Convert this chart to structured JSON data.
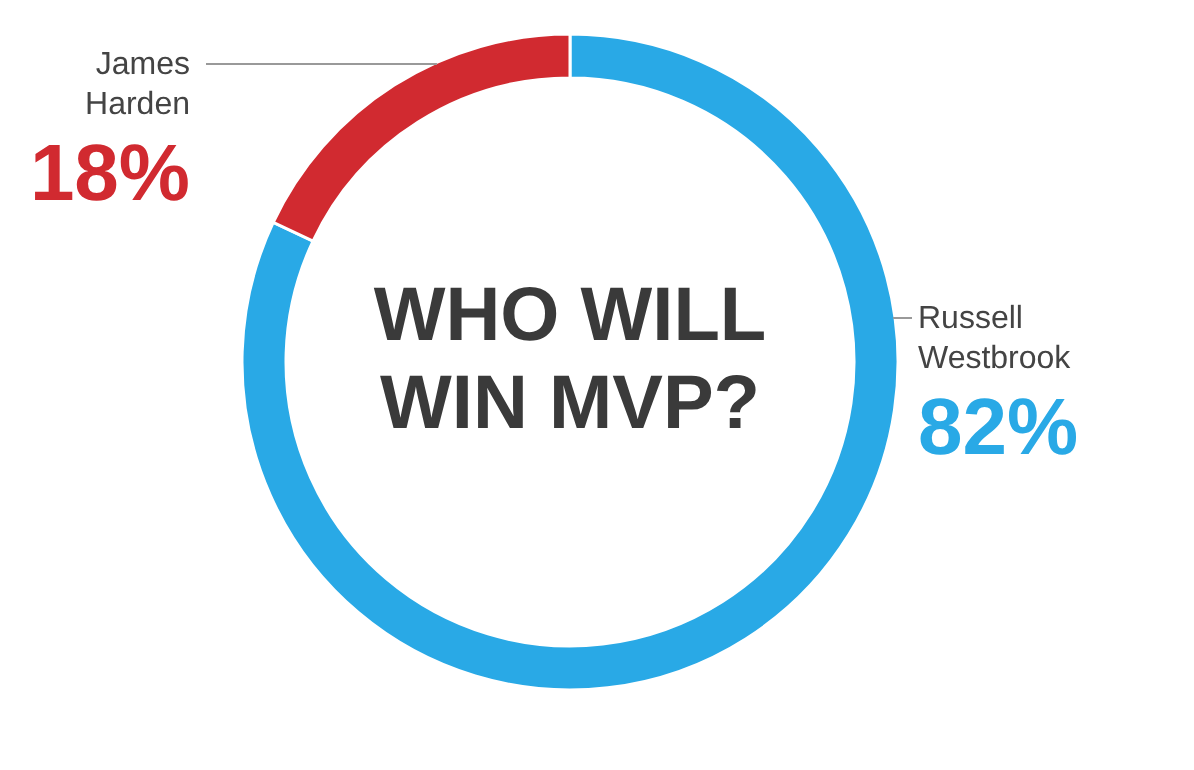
{
  "chart_data": {
    "type": "donut",
    "title": "WHO WILL WIN MVP?",
    "categories": [
      "Russell Westbrook",
      "James Harden"
    ],
    "values": [
      82,
      18
    ],
    "colors": [
      "#29a9e6",
      "#d12a30"
    ],
    "value_labels": [
      "82%",
      "18%"
    ]
  }
}
